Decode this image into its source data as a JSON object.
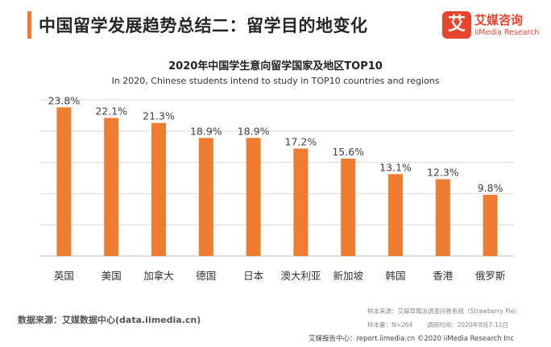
{
  "header": {
    "title": "中国留学发展趋势总结二：留学目的地变化",
    "brand_logo_char": "艾",
    "brand_name": "艾媒咨询",
    "brand_sub": "iiMedia Research"
  },
  "chart_data": {
    "type": "bar",
    "title": "2020年中国学生意向留学国家及地区TOP10",
    "subtitle": "In 2020, Chinese students intend to study in TOP10 countries and regions",
    "categories": [
      "英国",
      "美国",
      "加拿大",
      "德国",
      "日本",
      "澳大利亚",
      "新加坡",
      "韩国",
      "香港",
      "俄罗斯"
    ],
    "values": [
      23.8,
      22.1,
      21.3,
      18.9,
      18.9,
      17.2,
      15.6,
      13.1,
      12.3,
      9.8
    ],
    "value_labels": [
      "23.8%",
      "22.1%",
      "21.3%",
      "18.9%",
      "18.9%",
      "17.2%",
      "15.6%",
      "13.1%",
      "12.3%",
      "9.8%"
    ],
    "unit": "%",
    "ylim": [
      0,
      25
    ],
    "grid": true,
    "bar_color": "#ef7d31"
  },
  "footer": {
    "source": "数据来源：艾媒数据中心(data.iimedia.cn)",
    "sample_source": "样本来源：艾媒草莓派调查问卷系统（Strawberry Pie)",
    "sample_size": "样本量：N=264",
    "survey_time": "调研时间：2020年8月7-11日",
    "copyright": "艾媒报告中心：report.iimedia.cn  ©2020  iiMedia Research  Inc"
  }
}
